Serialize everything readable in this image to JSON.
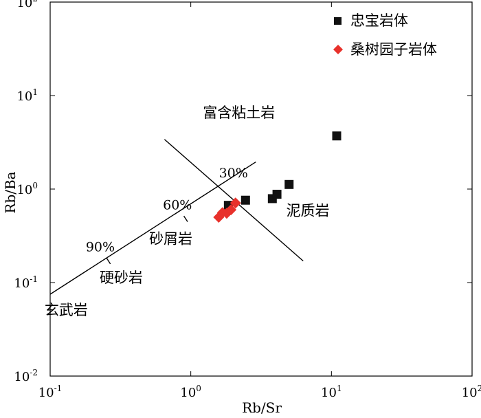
{
  "chart_data": {
    "type": "scatter",
    "x_scale": "log",
    "y_scale": "log",
    "xlim": [
      0.1,
      100
    ],
    "ylim": [
      0.01,
      100
    ],
    "xlabel": "Rb/Sr",
    "ylabel": "Rb/Ba",
    "x_ticks": [
      {
        "value": 0.1,
        "base": "10",
        "exp": "-1"
      },
      {
        "value": 1,
        "base": "10",
        "exp": "0"
      },
      {
        "value": 10,
        "base": "10",
        "exp": "1"
      },
      {
        "value": 100,
        "base": "10",
        "exp": "2"
      }
    ],
    "y_ticks": [
      {
        "value": 0.01,
        "base": "10",
        "exp": "-2"
      },
      {
        "value": 0.1,
        "base": "10",
        "exp": "-1"
      },
      {
        "value": 1,
        "base": "10",
        "exp": "0"
      },
      {
        "value": 10,
        "base": "10",
        "exp": "1"
      },
      {
        "value": 100,
        "base": "10",
        "exp": "2"
      }
    ],
    "grid": false,
    "legend_position": "top-right",
    "series": [
      {
        "name": "忠宝岩体",
        "marker": "square",
        "color": "#111111",
        "points": [
          {
            "x": 1.85,
            "y": 0.67
          },
          {
            "x": 2.45,
            "y": 0.76
          },
          {
            "x": 3.8,
            "y": 0.79
          },
          {
            "x": 4.1,
            "y": 0.88
          },
          {
            "x": 5.0,
            "y": 1.12
          },
          {
            "x": 10.9,
            "y": 3.7
          }
        ]
      },
      {
        "name": "桑树园子岩体",
        "marker": "diamond",
        "color": "#e8312b",
        "points": [
          {
            "x": 1.58,
            "y": 0.5
          },
          {
            "x": 1.68,
            "y": 0.56
          },
          {
            "x": 1.8,
            "y": 0.55
          },
          {
            "x": 1.93,
            "y": 0.6
          },
          {
            "x": 2.08,
            "y": 0.71
          }
        ]
      }
    ],
    "mixing_line": {
      "from": {
        "x": 0.1,
        "y": 0.075
      },
      "to": {
        "x": 2.9,
        "y": 1.95
      },
      "ticks": [
        {
          "x": 0.26,
          "y": 0.17,
          "label": "90%"
        },
        {
          "x": 0.92,
          "y": 0.48,
          "label": "60%"
        },
        {
          "x": 2.3,
          "y": 1.05,
          "label": "30%"
        }
      ]
    },
    "boundary_line": {
      "from": {
        "x": 0.65,
        "y": 3.4
      },
      "to": {
        "x": 6.3,
        "y": 0.17
      }
    },
    "region_labels": [
      {
        "text": "富含粘土岩",
        "x": 2.2,
        "y": 5.8
      },
      {
        "text": "泥质岩",
        "x": 6.8,
        "y": 0.52
      },
      {
        "text": "砂屑岩",
        "x": 0.72,
        "y": 0.26
      },
      {
        "text": "硬砂岩",
        "x": 0.32,
        "y": 0.1
      },
      {
        "text": "玄武岩",
        "x": 0.13,
        "y": 0.045
      }
    ]
  }
}
